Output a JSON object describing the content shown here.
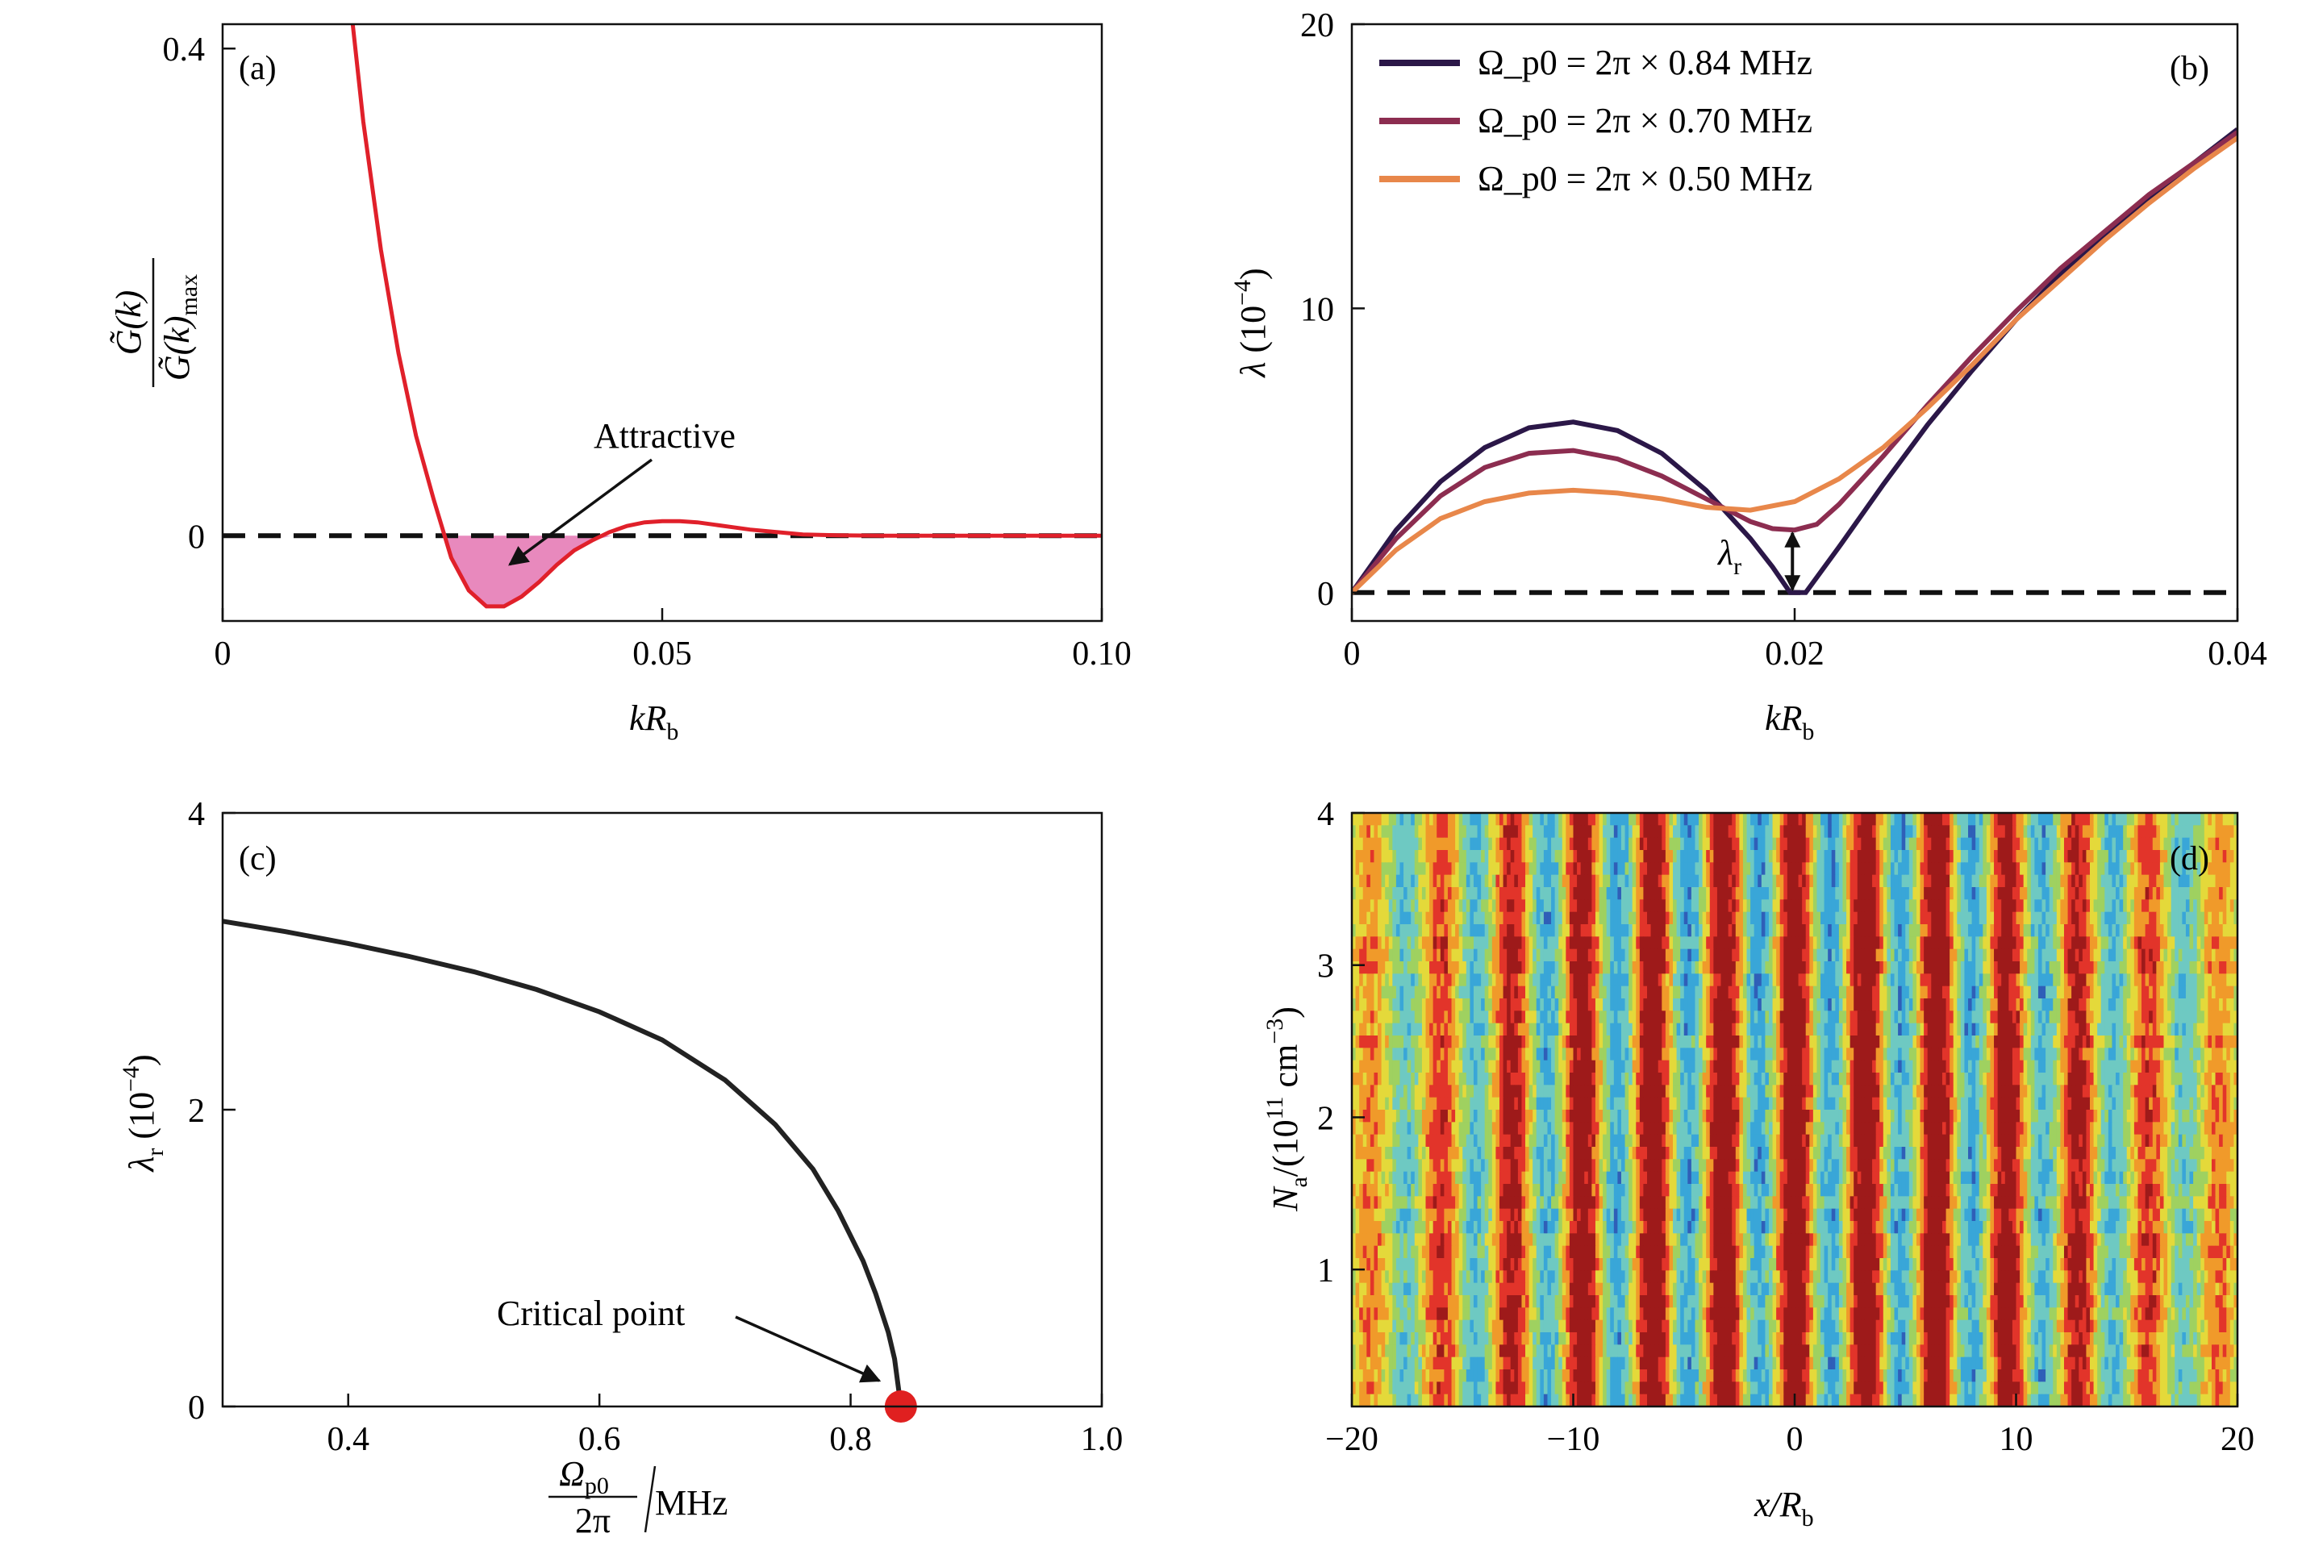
{
  "chart_data": [
    {
      "panel": "(a)",
      "type": "line",
      "xlabel": "kR_b",
      "ylabel": "G̃(k) / G̃(k)_max",
      "xlim": [
        0,
        0.1
      ],
      "ylim": [
        -0.07,
        0.42
      ],
      "xticks": [
        "0",
        "0.05",
        "0.10"
      ],
      "yticks": [
        "0",
        "0.4"
      ],
      "annotation": "Attractive",
      "series": [
        {
          "color": "#e0202a",
          "fill_negative": "#e889bd",
          "x": [
            0.0148,
            0.016,
            0.018,
            0.02,
            0.022,
            0.024,
            0.026,
            0.028,
            0.03,
            0.032,
            0.034,
            0.036,
            0.038,
            0.04,
            0.042,
            0.044,
            0.046,
            0.048,
            0.05,
            0.052,
            0.054,
            0.056,
            0.058,
            0.06,
            0.063,
            0.066,
            0.07,
            0.075,
            0.08,
            0.09,
            0.1
          ],
          "y": [
            0.42,
            0.34,
            0.235,
            0.15,
            0.082,
            0.03,
            -0.018,
            -0.045,
            -0.058,
            -0.058,
            -0.05,
            -0.038,
            -0.024,
            -0.012,
            -0.004,
            0.003,
            0.008,
            0.011,
            0.012,
            0.012,
            0.011,
            0.009,
            0.007,
            0.005,
            0.003,
            0.001,
            0.0003,
            0.0,
            0.0,
            0.0,
            0.0
          ]
        }
      ],
      "reference_line": {
        "y": 0,
        "style": "dashed"
      }
    },
    {
      "panel": "(b)",
      "type": "line",
      "xlabel": "kR_b",
      "ylabel": "λ (10⁻⁴)",
      "xlim": [
        0,
        0.04
      ],
      "ylim": [
        -1,
        20
      ],
      "xticks": [
        "0",
        "0.02",
        "0.04"
      ],
      "yticks": [
        "0",
        "10",
        "20"
      ],
      "annotation": "λ_r",
      "legend_position": "top-left",
      "series": [
        {
          "name": "Ω_p0 = 2π × 0.84 MHz",
          "color": "#2b1748",
          "x": [
            0,
            0.002,
            0.004,
            0.006,
            0.008,
            0.01,
            0.012,
            0.014,
            0.016,
            0.018,
            0.019,
            0.0198,
            0.0205,
            0.022,
            0.024,
            0.026,
            0.028,
            0.03,
            0.032,
            0.034,
            0.036,
            0.038,
            0.04
          ],
          "y": [
            0,
            2.2,
            3.9,
            5.1,
            5.8,
            6.0,
            5.7,
            4.9,
            3.6,
            1.9,
            0.9,
            0.0,
            0.0,
            1.6,
            3.8,
            5.9,
            7.8,
            9.6,
            11.2,
            12.6,
            13.9,
            15.1,
            16.3
          ]
        },
        {
          "name": "Ω_p0 = 2π × 0.70 MHz",
          "color": "#8c2d50",
          "x": [
            0,
            0.002,
            0.004,
            0.006,
            0.008,
            0.01,
            0.012,
            0.014,
            0.016,
            0.018,
            0.019,
            0.02,
            0.021,
            0.022,
            0.024,
            0.026,
            0.028,
            0.03,
            0.032,
            0.034,
            0.036,
            0.038,
            0.04
          ],
          "y": [
            0,
            1.9,
            3.4,
            4.4,
            4.9,
            5.0,
            4.7,
            4.1,
            3.3,
            2.5,
            2.25,
            2.2,
            2.4,
            3.1,
            4.8,
            6.6,
            8.3,
            9.9,
            11.4,
            12.7,
            14.0,
            15.1,
            16.2
          ]
        },
        {
          "name": "Ω_p0 = 2π × 0.50 MHz",
          "color": "#e8874a",
          "x": [
            0,
            0.002,
            0.004,
            0.006,
            0.008,
            0.01,
            0.012,
            0.014,
            0.016,
            0.018,
            0.02,
            0.022,
            0.024,
            0.026,
            0.028,
            0.03,
            0.032,
            0.034,
            0.036,
            0.038,
            0.04
          ],
          "y": [
            0,
            1.5,
            2.6,
            3.2,
            3.5,
            3.6,
            3.5,
            3.3,
            3.0,
            2.9,
            3.2,
            4.0,
            5.1,
            6.5,
            8.0,
            9.6,
            11.0,
            12.4,
            13.7,
            14.9,
            16.0
          ]
        }
      ],
      "reference_line": {
        "y": 0,
        "style": "dashed"
      }
    },
    {
      "panel": "(c)",
      "type": "line",
      "xlabel": "Ω_p0 / 2π / MHz",
      "ylabel": "λ_r (10⁻⁴)",
      "xlim": [
        0.3,
        1.0
      ],
      "ylim": [
        0,
        4
      ],
      "xticks": [
        "0.4",
        "0.6",
        "0.8",
        "1.0"
      ],
      "yticks": [
        "0",
        "2",
        "4"
      ],
      "annotation": "Critical point",
      "critical_point": {
        "x": 0.84,
        "y": 0,
        "color": "#e02020"
      },
      "series": [
        {
          "color": "#222222",
          "x": [
            0.3,
            0.35,
            0.4,
            0.45,
            0.5,
            0.55,
            0.6,
            0.65,
            0.7,
            0.74,
            0.77,
            0.79,
            0.81,
            0.82,
            0.83,
            0.835,
            0.84
          ],
          "y": [
            3.27,
            3.2,
            3.12,
            3.03,
            2.93,
            2.81,
            2.66,
            2.47,
            2.2,
            1.9,
            1.6,
            1.32,
            0.98,
            0.76,
            0.5,
            0.32,
            0.0
          ]
        }
      ]
    },
    {
      "panel": "(d)",
      "type": "heatmap",
      "xlabel": "x/R_b",
      "ylabel": "N_a/(10¹¹ cm⁻³)",
      "xlim": [
        -20,
        20
      ],
      "ylim": [
        0.1,
        4
      ],
      "xticks": [
        "−20",
        "−10",
        "0",
        "10",
        "20"
      ],
      "yticks": [
        "1",
        "2",
        "3",
        "4"
      ],
      "colormap": [
        "#2f5fb8",
        "#39a6d8",
        "#6ec9c2",
        "#9fd160",
        "#e4d93a",
        "#f09a2a",
        "#e2342a",
        "#9e1a1a"
      ],
      "stripe_period_xRb": 3.2,
      "stripe_phase_xRb": 0.0
    }
  ]
}
